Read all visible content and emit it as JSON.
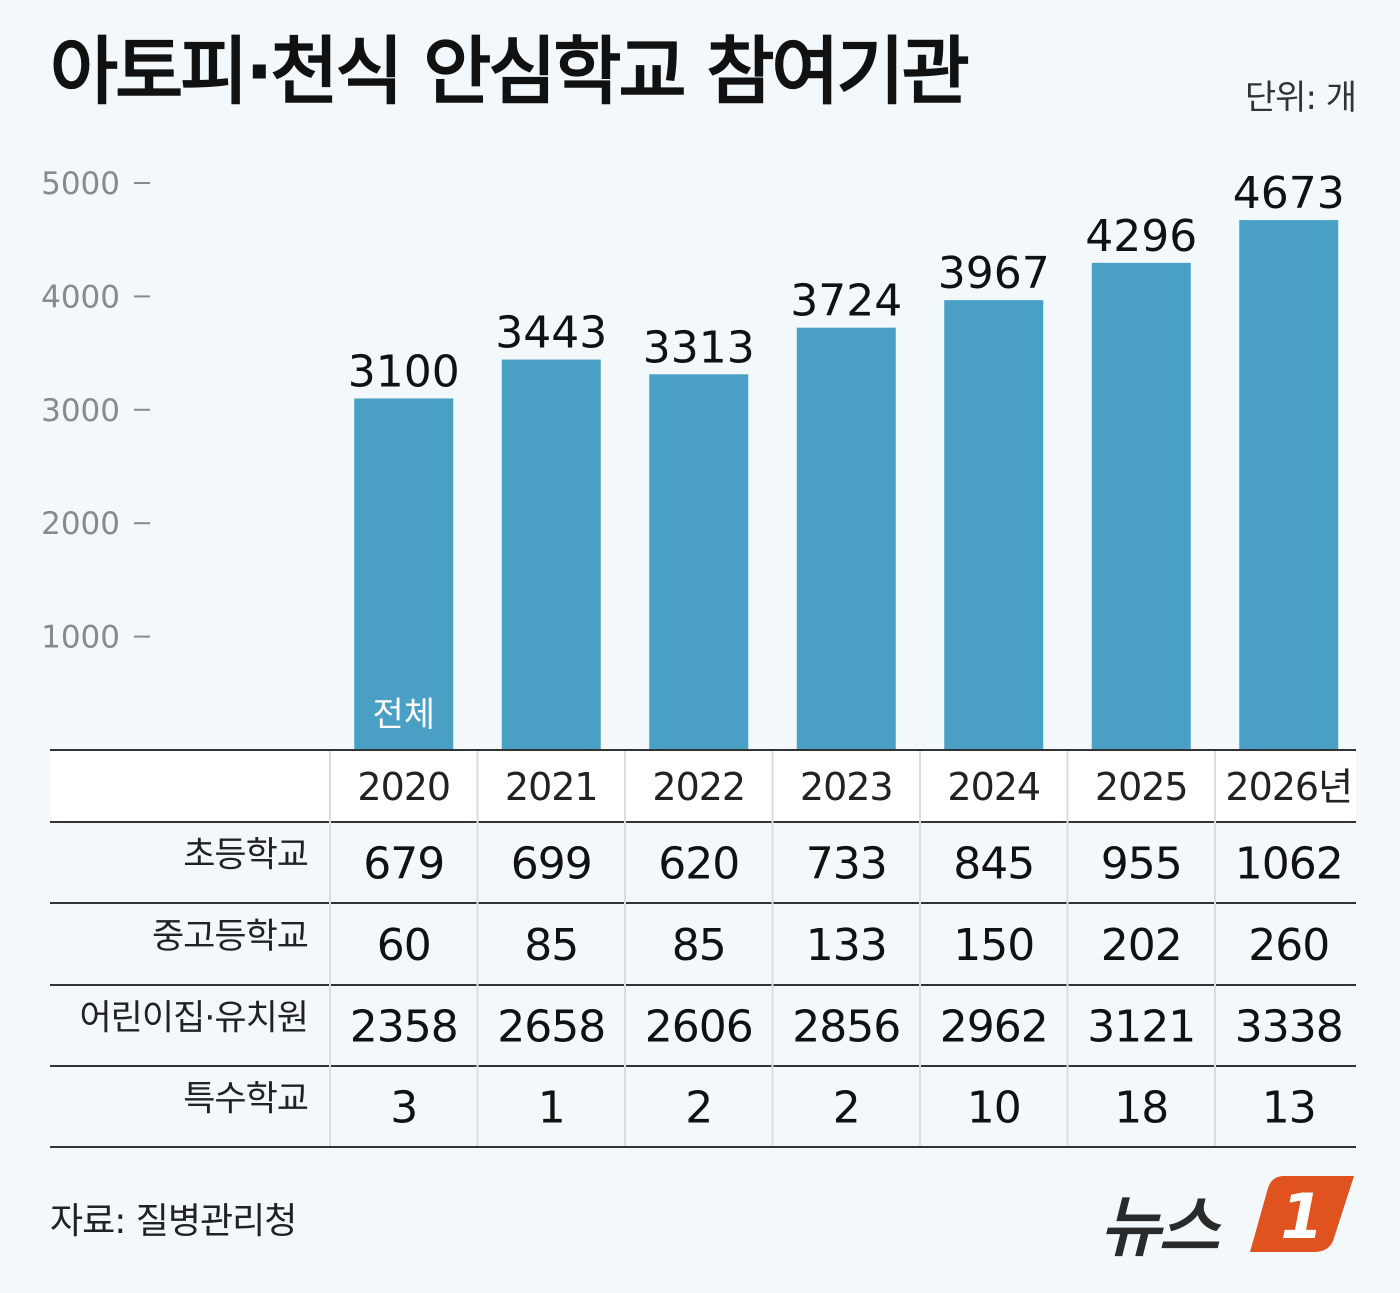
{
  "title": "아토피·천식 안심학교 참여기관",
  "unit": "단위: 개",
  "source": "자료: 질병관리청",
  "logo_text": "뉴스",
  "logo_badge": "1",
  "colors": {
    "bar": "#4a9fc4",
    "background": "#f2f8fc",
    "logo_badge": "#e0531f"
  },
  "chart_data": {
    "type": "bar",
    "categories": [
      "2020",
      "2021",
      "2022",
      "2023",
      "2024",
      "2025",
      "2026년"
    ],
    "series": [
      {
        "name": "전체",
        "values": [
          3100,
          3443,
          3313,
          3724,
          3967,
          4296,
          4673
        ]
      }
    ],
    "ylim": [
      0,
      5000
    ],
    "yticks": [
      "1000",
      "2000",
      "3000",
      "4000",
      "5000"
    ],
    "grid": false
  },
  "table": {
    "columns": [
      "2020",
      "2021",
      "2022",
      "2023",
      "2024",
      "2025",
      "2026년"
    ],
    "rows": [
      {
        "label": "초등학교",
        "values": [
          "679",
          "699",
          "620",
          "733",
          "845",
          "955",
          "1062"
        ]
      },
      {
        "label": "중고등학교",
        "values": [
          "60",
          "85",
          "85",
          "133",
          "150",
          "202",
          "260"
        ]
      },
      {
        "label": "어린이집·유치원",
        "values": [
          "2358",
          "2658",
          "2606",
          "2856",
          "2962",
          "3121",
          "3338"
        ]
      },
      {
        "label": "특수학교",
        "values": [
          "3",
          "1",
          "2",
          "2",
          "10",
          "18",
          "13"
        ]
      }
    ]
  }
}
